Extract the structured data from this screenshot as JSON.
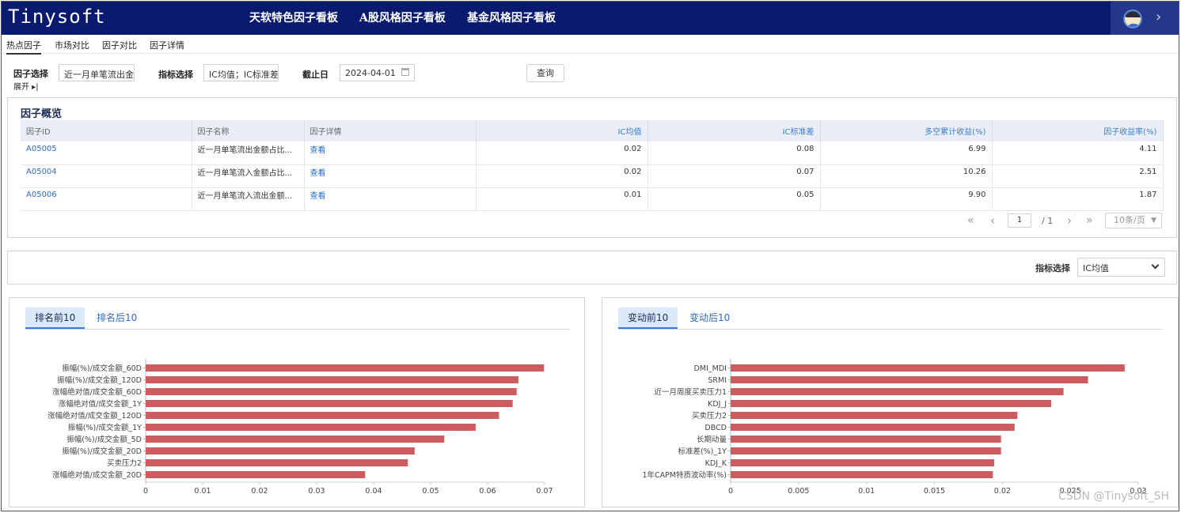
{
  "app": {
    "logo": "Tinysoft",
    "top_tabs": [
      {
        "label": "天软特色因子看板",
        "active": true
      },
      {
        "label": "A股风格因子看板",
        "active": false
      },
      {
        "label": "基金风格因子看板",
        "active": false
      }
    ],
    "user_icon": "user-avatar-icon",
    "expand_icon": "chevron-right-icon"
  },
  "sub_tabs": [
    {
      "label": "热点因子",
      "active": true
    },
    {
      "label": "市场对比",
      "active": false
    },
    {
      "label": "因子对比",
      "active": false
    },
    {
      "label": "因子详情",
      "active": false
    }
  ],
  "filters": {
    "factor_label": "因子选择",
    "factor_value": "近一月单笔流出金",
    "expand_label": "展开 ▸|",
    "metric_label": "指标选择",
    "metric_value": "IC均值；IC标准差",
    "date_label": "截止日",
    "date_value": "2024-04-01",
    "query_button": "查询"
  },
  "overview": {
    "title": "因子概览",
    "columns": [
      "因子ID",
      "因子名称",
      "因子详情",
      "IC均值",
      "IC标准差",
      "多空累计收益(%)",
      "因子收益率(%)"
    ],
    "rows": [
      {
        "id": "A05005",
        "name": "近一月单笔流出金额占比...",
        "detail": "查看",
        "ic_mean": "0.02",
        "ic_std": "0.08",
        "ls_return": "6.99",
        "factor_return": "4.11"
      },
      {
        "id": "A05004",
        "name": "近一月单笔流入金额占比...",
        "detail": "查看",
        "ic_mean": "0.02",
        "ic_std": "0.07",
        "ls_return": "10.26",
        "factor_return": "2.51"
      },
      {
        "id": "A05006",
        "name": "近一月单笔流入流出金额...",
        "detail": "查看",
        "ic_mean": "0.01",
        "ic_std": "0.05",
        "ls_return": "9.90",
        "factor_return": "1.87"
      }
    ],
    "pager": {
      "first": "«",
      "prev": "‹",
      "page": "1",
      "total": "/ 1",
      "next": "›",
      "last": "»",
      "page_size": "10条/页"
    }
  },
  "metric_select": {
    "label": "指标选择",
    "value": "IC均值"
  },
  "left_chart_tabs": [
    {
      "label": "排名前10",
      "active": true
    },
    {
      "label": "排名后10",
      "active": false
    }
  ],
  "right_chart_tabs": [
    {
      "label": "变动前10",
      "active": true
    },
    {
      "label": "变动后10",
      "active": false
    }
  ],
  "colors": {
    "bar": "#cd5c60",
    "nav": "#0a1a6e",
    "link": "#2b6cc4"
  },
  "chart_data": [
    {
      "type": "bar",
      "orientation": "horizontal",
      "categories": [
        "振幅(%)/成交金额_60D",
        "振幅(%)/成交金额_120D",
        "涨幅绝对值/成交金额_60D",
        "涨幅绝对值/成交金额_1Y",
        "涨幅绝对值/成交金额_120D",
        "振幅(%)/成交金额_1Y",
        "振幅(%)/成交金额_5D",
        "振幅(%)/成交金额_20D",
        "买卖压力2",
        "涨幅绝对值/成交金额_20D"
      ],
      "values": [
        0.0699,
        0.0654,
        0.0651,
        0.0644,
        0.062,
        0.0579,
        0.0524,
        0.0472,
        0.046,
        0.0385
      ],
      "xlim": [
        0,
        0.07
      ],
      "xticks": [
        "0",
        "0.01",
        "0.02",
        "0.03",
        "0.04",
        "0.05",
        "0.06",
        "0.07"
      ],
      "grid": false
    },
    {
      "type": "bar",
      "orientation": "horizontal",
      "categories": [
        "DMI_MDI",
        "SRMI",
        "近一月周度买卖压力1",
        "KDJ_J",
        "买卖压力2",
        "DBCD",
        "长期动量",
        "标准差(%)_1Y",
        "KDJ_K",
        "1年CAPM特质波动率(%)"
      ],
      "values": [
        0.029,
        0.0263,
        0.0245,
        0.0236,
        0.0211,
        0.0209,
        0.0199,
        0.0199,
        0.0194,
        0.0193
      ],
      "xlim": [
        0,
        0.03
      ],
      "xticks": [
        "0",
        "0.005",
        "0.01",
        "0.015",
        "0.02",
        "0.025",
        "0.03"
      ],
      "grid": false
    }
  ],
  "watermark": "CSDN @Tinysoft_SH"
}
